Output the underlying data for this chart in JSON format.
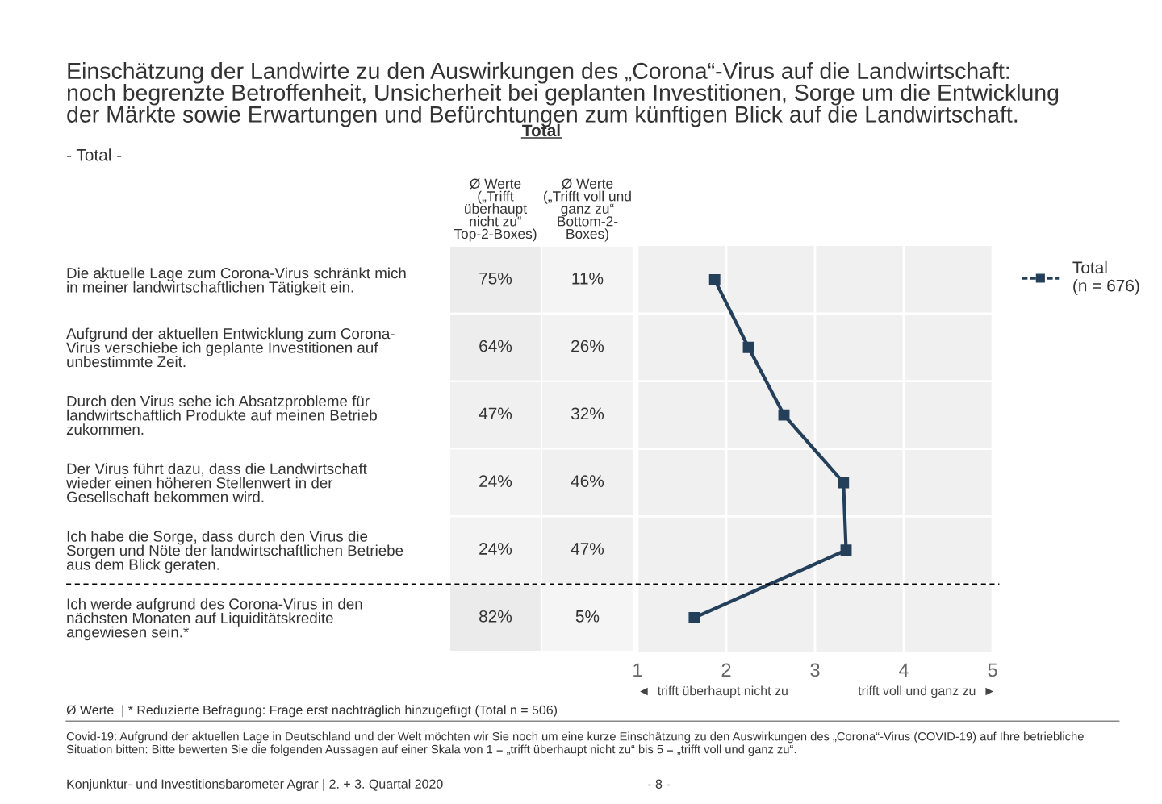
{
  "chart_data": [
    {
      "type": "heatmap",
      "title": "Total",
      "categories": [
        "Ø Werte\n(„Trifft\nüberhaupt\nnicht zu“\nTop-2-Boxes)",
        "Ø Werte\n(„Trifft voll und\nganz zu“\nBottom-2-\nBoxes)"
      ],
      "y_categories": [
        "Die aktuelle Lage zum Corona-Virus schränkt mich\nin meiner landwirtschaftlichen Tätigkeit ein.",
        "Aufgrund der aktuellen Entwicklung zum Corona-\nVirus verschiebe ich geplante Investitionen auf\nunbestimmte Zeit.",
        "Durch den Virus sehe ich Absatzprobleme für\nlandwirtschaftlich Produkte auf meinen Betrieb\nzukommen.",
        "Der Virus führt dazu, dass die Landwirtschaft\nwieder einen höheren Stellenwert in der\nGesellschaft bekommen wird.",
        "Ich habe die Sorge, dass durch den Virus die\nSorgen und Nöte der landwirtschaftlichen Betriebe\naus dem Blick geraten.",
        "Ich werde aufgrund des Corona-Virus in den\nnächsten Monaten auf Liquiditätskredite\nangewiesen sein.*"
      ],
      "cells": [
        [
          75,
          11
        ],
        [
          64,
          26
        ],
        [
          47,
          32
        ],
        [
          24,
          46
        ],
        [
          24,
          47
        ],
        [
          82,
          5
        ]
      ],
      "cell_labels": [
        [
          "75%",
          "11%"
        ],
        [
          "64%",
          "26%"
        ],
        [
          "47%",
          "32%"
        ],
        [
          "24%",
          "46%"
        ],
        [
          "24%",
          "47%"
        ],
        [
          "82%",
          "5%"
        ]
      ],
      "subtitle": "- Total -",
      "color": "#f0f0f0"
    },
    {
      "type": "line",
      "orientation": "horizontal",
      "title": "Einschätzung der Landwirte zu den Auswirkungen des „Corona“-Virus auf die Landwirtschaft:\nnoch begrenzte Betroffenheit, Unsicherheit bei geplanten Investitionen, Sorge um die Entwicklung\nder Märkte sowie Erwartungen und Befürchtungen zum künftigen Blick auf die Landwirtschaft.",
      "categories": [
        null,
        null,
        null,
        null,
        null,
        null
      ],
      "series": [
        {
          "name": "Total\n(n = 676)",
          "color": "#243f5a",
          "values": [
            1.87,
            2.25,
            2.65,
            3.32,
            3.35,
            1.64
          ]
        }
      ],
      "xlim": [
        1,
        5
      ],
      "xticks": [
        1,
        2,
        3,
        4,
        5
      ],
      "tick_labels": "x",
      "grid": true,
      "legend": "top right",
      "marker": "square",
      "line_style": "solid",
      "annotations": [
        "◄  trifft überhaupt nicht zu",
        "trifft voll und ganz zu  ►",
        "Ø Werte  | * Reduzierte Befragung: Frage erst nachträglich hinzugefügt (Total n = 506)",
        "Covid-19: Aufgrund der aktuellen Lage in Deutschland und der Welt möchten wir Sie noch um eine kurze Einschätzung zu den Auswirkungen des „Corona“-Virus (COVID-19) auf Ihre betriebliche\nSituation bitten: Bitte bewerten Sie die folgenden Aussagen auf einer Skala von 1 = „trifft überhaupt nicht zu“ bis 5 = „trifft voll und ganz zu“.",
        "Konjunktur- und Investitionsbarometer Agrar | 2. + 3. Quartal 2020",
        "- 8 -"
      ]
    }
  ]
}
